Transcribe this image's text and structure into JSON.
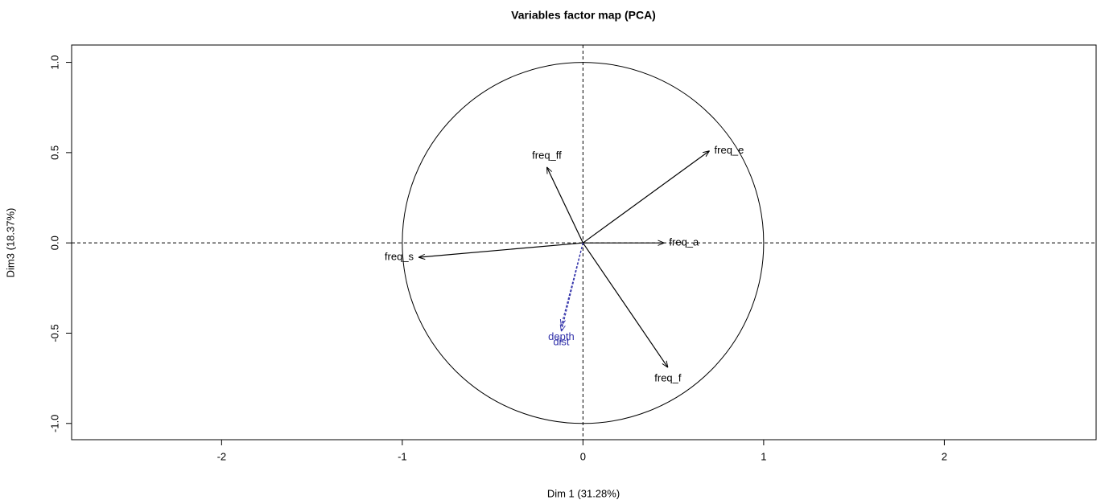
{
  "chart_data": {
    "type": "vectors",
    "title": "Variables factor map (PCA)",
    "xlabel": "Dim 1 (31.28%)",
    "ylabel": "Dim3 (18.37%)",
    "xlim": [
      -2.83,
      2.84
    ],
    "ylim": [
      -1.09,
      1.096
    ],
    "xticks": [
      -2,
      -1,
      0,
      1,
      2
    ],
    "yticks": [
      {
        "value": -1,
        "label": "-1.0"
      },
      {
        "value": -0.5,
        "label": "-0.5"
      },
      {
        "value": 0,
        "label": "0.0"
      },
      {
        "value": 0.5,
        "label": "0.5"
      },
      {
        "value": 1,
        "label": "1.0"
      }
    ],
    "points": [
      {
        "label": "freq_ff",
        "x": -0.2,
        "y": 0.42,
        "color": "#000000",
        "dashed": false
      },
      {
        "label": "freq_e",
        "x": 0.7,
        "y": 0.51,
        "color": "#000000",
        "dashed": false
      },
      {
        "label": "freq_a",
        "x": 0.45,
        "y": 0.0,
        "color": "#000000",
        "dashed": false
      },
      {
        "label": "freq_s",
        "x": -0.91,
        "y": -0.08,
        "color": "#000000",
        "dashed": false
      },
      {
        "label": "freq_f",
        "x": 0.47,
        "y": -0.69,
        "color": "#000000",
        "dashed": false
      },
      {
        "label": "depth",
        "x": -0.12,
        "y": -0.46,
        "color": "#3333aa",
        "dashed": true
      },
      {
        "label": "dist",
        "x": -0.12,
        "y": -0.49,
        "color": "#3333aa",
        "dashed": true
      }
    ]
  }
}
